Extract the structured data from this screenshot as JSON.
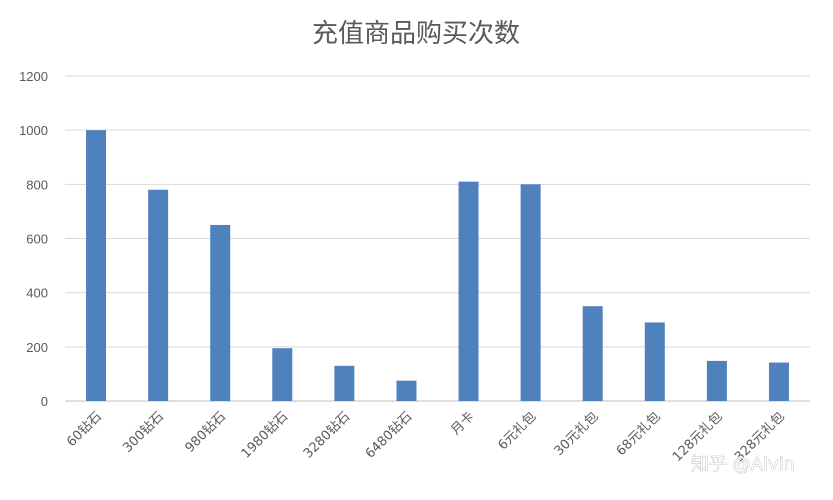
{
  "chart_data": {
    "type": "bar",
    "title": "充值商品购买次数",
    "categories": [
      "60钻石",
      "300钻石",
      "980钻石",
      "1980钻石",
      "3280钻石",
      "6480钻石",
      "月卡",
      "6元礼包",
      "30元礼包",
      "68元礼包",
      "128元礼包",
      "328元礼包"
    ],
    "values": [
      1000,
      780,
      650,
      195,
      130,
      75,
      810,
      800,
      350,
      290,
      148,
      142
    ],
    "ylim": [
      0,
      1200
    ],
    "yticks": [
      0,
      200,
      400,
      600,
      800,
      1000,
      1200
    ],
    "grid": true,
    "legend": "none",
    "bar_color": "#4f81bd"
  },
  "watermark": "知乎 @Alvin"
}
